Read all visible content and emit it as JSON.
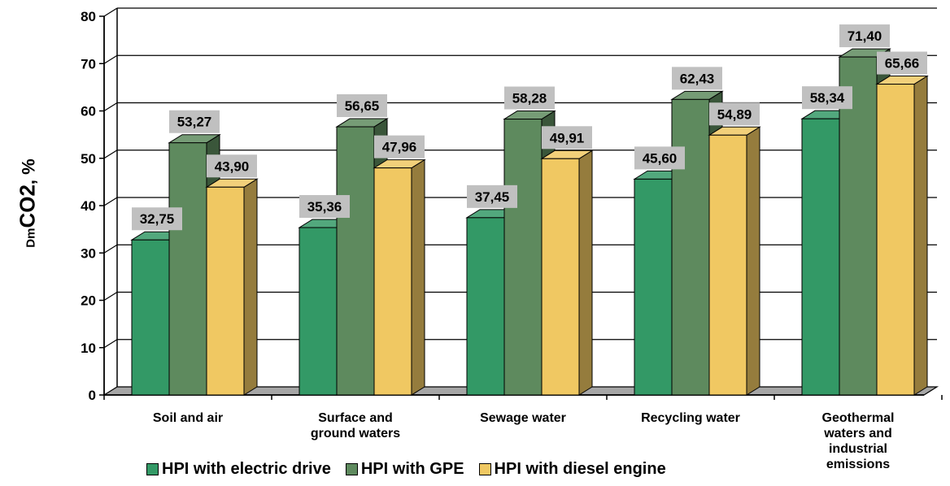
{
  "chart_data": {
    "type": "bar",
    "ylabel": {
      "prefix": "Dm",
      "main": "CO2",
      "suffix": ", %"
    },
    "ylim": [
      0,
      80
    ],
    "yticks": [
      0,
      10,
      20,
      30,
      40,
      50,
      60,
      70,
      80
    ],
    "grid": true,
    "legend_position": "bottom",
    "categories": [
      [
        "Soil and air"
      ],
      [
        "Surface and",
        "ground waters"
      ],
      [
        "Sewage water"
      ],
      [
        "Recycling water"
      ],
      [
        "Geothermal",
        "waters and",
        "industrial",
        "emissions"
      ]
    ],
    "series": [
      {
        "name": "HPI with electric drive",
        "color": "#339966",
        "values": [
          32.75,
          35.36,
          37.45,
          45.6,
          58.34
        ],
        "labels": [
          "32,75",
          "35,36",
          "37,45",
          "45,60",
          "58,34"
        ]
      },
      {
        "name": "HPI with GPE",
        "color": "#5e8a5e",
        "values": [
          53.27,
          56.65,
          58.28,
          62.43,
          71.4
        ],
        "labels": [
          "53,27",
          "56,65",
          "58,28",
          "62,43",
          "71,40"
        ]
      },
      {
        "name": "HPI  with diesel engine",
        "color": "#f0c862",
        "values": [
          43.9,
          47.96,
          49.91,
          54.89,
          65.66
        ],
        "labels": [
          "43,90",
          "47,96",
          "49,91",
          "54,89",
          "65,66"
        ]
      }
    ]
  }
}
